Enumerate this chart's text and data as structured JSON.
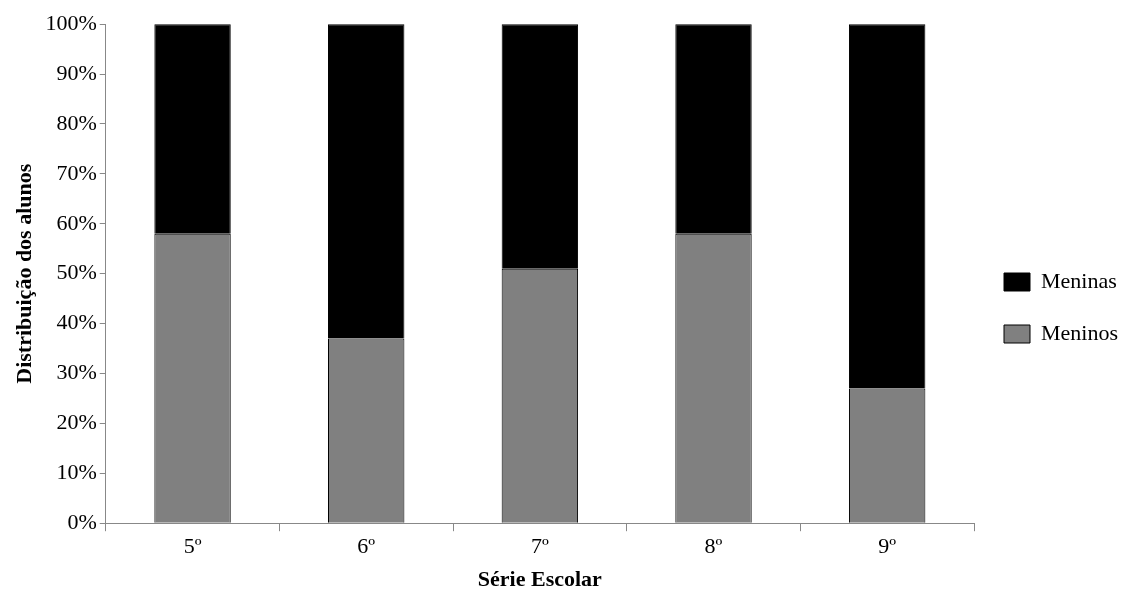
{
  "chart_data": {
    "type": "bar",
    "stacked": true,
    "xlabel": "Série Escolar",
    "ylabel": "Distribuição dos alunos",
    "categories": [
      "5º",
      "6º",
      "7º",
      "8º",
      "9º"
    ],
    "series": [
      {
        "name": "Meninos",
        "color": "#808080",
        "values": [
          58,
          37,
          51,
          58,
          27
        ]
      },
      {
        "name": "Meninas",
        "color": "#000000",
        "values": [
          42,
          63,
          49,
          42,
          73
        ]
      }
    ],
    "ylim": [
      0,
      100
    ],
    "yticks": [
      {
        "value": 0,
        "label": "0%"
      },
      {
        "value": 10,
        "label": "10%"
      },
      {
        "value": 20,
        "label": "20%"
      },
      {
        "value": 30,
        "label": "30%"
      },
      {
        "value": 40,
        "label": "40%"
      },
      {
        "value": 50,
        "label": "50%"
      },
      {
        "value": 60,
        "label": "60%"
      },
      {
        "value": 70,
        "label": "70%"
      },
      {
        "value": 80,
        "label": "80%"
      },
      {
        "value": 90,
        "label": "90%"
      },
      {
        "value": 100,
        "label": "100%"
      }
    ],
    "grid": false,
    "legend": "right"
  }
}
